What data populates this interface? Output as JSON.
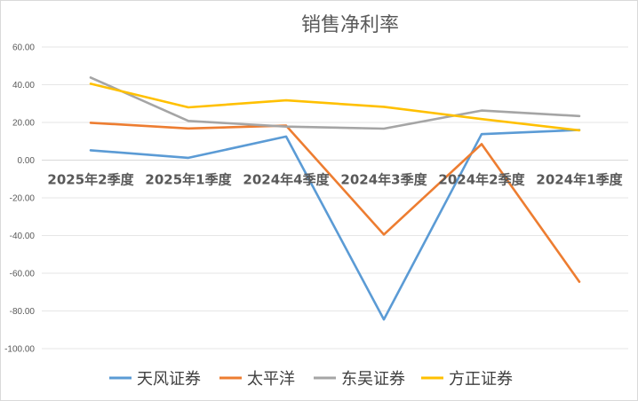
{
  "chart_data": {
    "type": "line",
    "title": "销售净利率",
    "categories": [
      "2025年2季度",
      "2025年1季度",
      "2024年4季度",
      "2024年3季度",
      "2024年2季度",
      "2024年1季度"
    ],
    "ylim": [
      -100,
      60
    ],
    "yticks": [
      "60.00",
      "40.00",
      "20.00",
      "0.00",
      "-20.00",
      "-40.00",
      "-60.00",
      "-80.00",
      "-100.00"
    ],
    "grid": true,
    "legend_position": "bottom",
    "series": [
      {
        "name": "天风证券",
        "color": "#5B9BD5",
        "values": [
          5.2,
          1.2,
          12.5,
          -84.5,
          13.8,
          16.0
        ]
      },
      {
        "name": "太平洋",
        "color": "#ED7D31",
        "values": [
          19.8,
          16.8,
          18.3,
          -39.5,
          8.5,
          -64.5
        ]
      },
      {
        "name": "东吴证券",
        "color": "#A5A5A5",
        "values": [
          43.8,
          20.8,
          17.8,
          16.7,
          26.3,
          23.4
        ]
      },
      {
        "name": "方正证券",
        "color": "#FFC000",
        "values": [
          40.5,
          28.0,
          31.7,
          28.3,
          21.8,
          15.8
        ]
      }
    ]
  }
}
